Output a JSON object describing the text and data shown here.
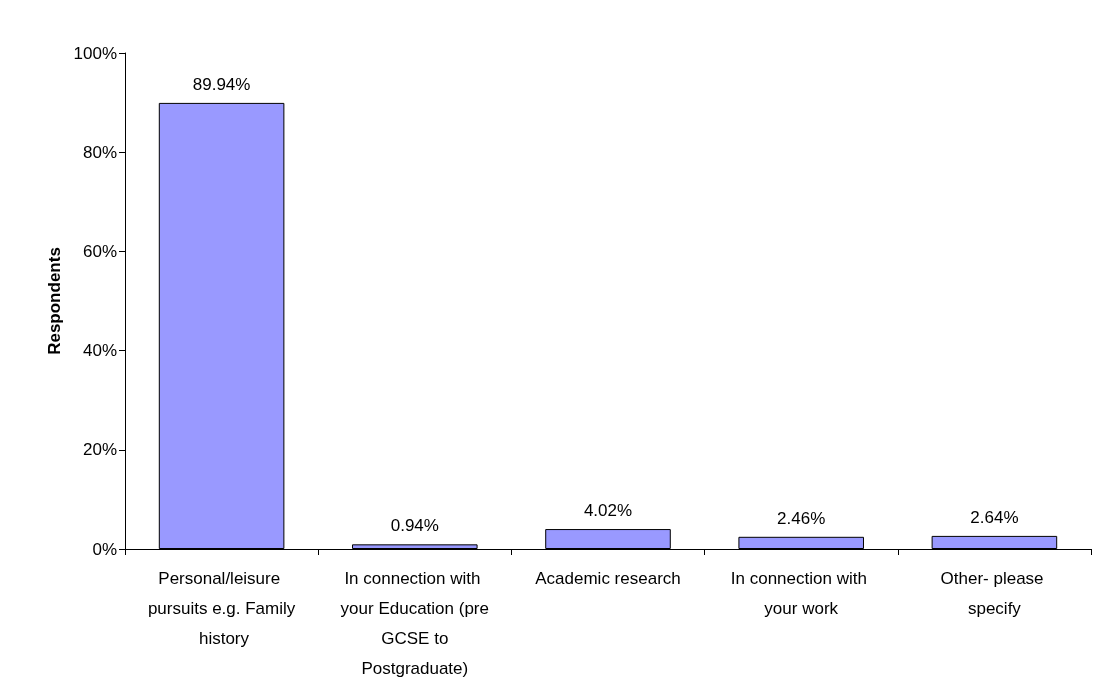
{
  "chart_data": {
    "type": "bar",
    "ylabel": "Respondents",
    "categories": [
      "Personal/leisure pursuits e.g. Family history",
      "In connection with your Education (pre GCSE to Postgraduate)",
      "Academic research",
      "In connection with your work",
      "Other- please specify"
    ],
    "values": [
      89.94,
      0.94,
      4.02,
      2.46,
      2.64
    ],
    "value_labels": [
      "89.94%",
      "0.94%",
      "4.02%",
      "2.46%",
      "2.64%"
    ],
    "color": "#9999ff",
    "ylim": [
      0,
      100
    ],
    "yticks": [
      {
        "value": 0,
        "label": "0%"
      },
      {
        "value": 20,
        "label": "20%"
      },
      {
        "value": 40,
        "label": "40%"
      },
      {
        "value": 60,
        "label": "60%"
      },
      {
        "value": 80,
        "label": "80%"
      },
      {
        "value": 100,
        "label": "100%"
      }
    ],
    "grid": false
  }
}
